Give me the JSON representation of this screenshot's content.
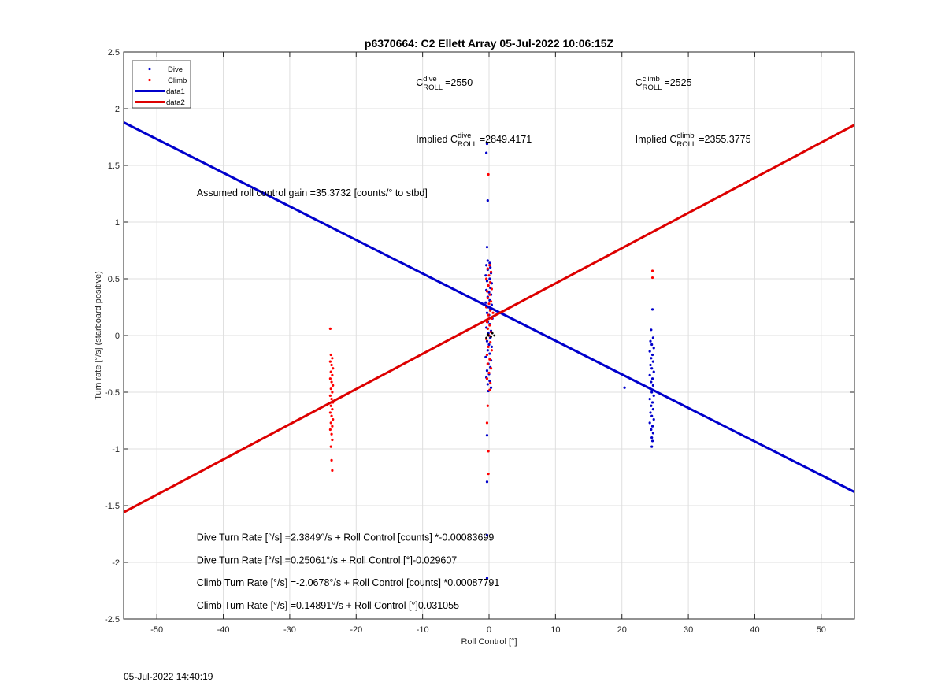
{
  "chart_data": {
    "type": "scatter",
    "title": "p6370664: C2 Ellett Array 05-Jul-2022 10:06:15Z",
    "xlabel": "Roll Control [°]",
    "ylabel": "Turn rate [°/s] (starboard positive)",
    "xlim": [
      -55,
      55
    ],
    "ylim": [
      -2.5,
      2.5
    ],
    "xticks": [
      -50,
      -40,
      -30,
      -20,
      -10,
      0,
      10,
      20,
      30,
      40,
      50
    ],
    "yticks": [
      -2.5,
      -2,
      -1.5,
      -1,
      -0.5,
      0,
      0.5,
      1,
      1.5,
      2,
      2.5
    ],
    "xtick_labels": [
      "-50",
      "-40",
      "-30",
      "-20",
      "-10",
      "0",
      "10",
      "20",
      "30",
      "40",
      "50"
    ],
    "ytick_labels": [
      "-2.5",
      "-2",
      "-1.5",
      "-1",
      "-0.5",
      "0",
      "0.5",
      "1",
      "1.5",
      "2",
      "2.5"
    ],
    "grid": true,
    "legend_position": "top-left",
    "series": [
      {
        "name": "Dive",
        "kind": "scatter",
        "color": "#0000cc",
        "points": [
          [
            -0.3,
            1.69
          ],
          [
            -0.4,
            1.61
          ],
          [
            -0.2,
            1.19
          ],
          [
            -0.3,
            0.78
          ],
          [
            -0.2,
            0.66
          ],
          [
            0.1,
            0.64
          ],
          [
            -0.4,
            0.62
          ],
          [
            0.2,
            0.6
          ],
          [
            -0.2,
            0.58
          ],
          [
            0.3,
            0.55
          ],
          [
            -0.5,
            0.53
          ],
          [
            0.1,
            0.5
          ],
          [
            -0.3,
            0.48
          ],
          [
            0.4,
            0.46
          ],
          [
            -0.1,
            0.44
          ],
          [
            0.2,
            0.42
          ],
          [
            -0.4,
            0.4
          ],
          [
            0.0,
            0.38
          ],
          [
            0.3,
            0.36
          ],
          [
            -0.2,
            0.34
          ],
          [
            0.1,
            0.31
          ],
          [
            -0.5,
            0.29
          ],
          [
            0.4,
            0.27
          ],
          [
            -0.1,
            0.25
          ],
          [
            0.2,
            0.23
          ],
          [
            -0.3,
            0.2
          ],
          [
            0.0,
            0.18
          ],
          [
            0.5,
            0.15
          ],
          [
            -0.2,
            0.12
          ],
          [
            0.1,
            0.1
          ],
          [
            -0.4,
            0.07
          ],
          [
            0.3,
            0.04
          ],
          [
            -0.1,
            0.02
          ],
          [
            0.2,
            -0.02
          ],
          [
            -0.3,
            -0.05
          ],
          [
            0.0,
            -0.08
          ],
          [
            0.4,
            -0.1
          ],
          [
            -0.2,
            -0.13
          ],
          [
            0.1,
            -0.16
          ],
          [
            -0.5,
            -0.19
          ],
          [
            0.3,
            -0.22
          ],
          [
            -0.1,
            -0.25
          ],
          [
            0.2,
            -0.28
          ],
          [
            -0.3,
            -0.31
          ],
          [
            0.0,
            -0.34
          ],
          [
            -0.4,
            -0.37
          ],
          [
            0.1,
            -0.4
          ],
          [
            -0.2,
            -0.43
          ],
          [
            0.3,
            -0.46
          ],
          [
            -0.1,
            -0.49
          ],
          [
            -0.3,
            -0.88
          ],
          [
            -0.3,
            -1.29
          ],
          [
            -0.3,
            -1.76
          ],
          [
            -0.3,
            -2.14
          ],
          [
            20.4,
            -0.46
          ],
          [
            24.6,
            0.23
          ],
          [
            24.4,
            0.05
          ],
          [
            24.7,
            -0.02
          ],
          [
            24.3,
            -0.05
          ],
          [
            24.5,
            -0.08
          ],
          [
            24.8,
            -0.11
          ],
          [
            24.2,
            -0.14
          ],
          [
            24.6,
            -0.17
          ],
          [
            24.4,
            -0.2
          ],
          [
            24.7,
            -0.23
          ],
          [
            24.3,
            -0.26
          ],
          [
            24.5,
            -0.29
          ],
          [
            24.8,
            -0.32
          ],
          [
            24.2,
            -0.35
          ],
          [
            24.6,
            -0.38
          ],
          [
            24.4,
            -0.41
          ],
          [
            24.7,
            -0.44
          ],
          [
            24.3,
            -0.47
          ],
          [
            24.5,
            -0.5
          ],
          [
            24.8,
            -0.53
          ],
          [
            24.2,
            -0.56
          ],
          [
            24.6,
            -0.59
          ],
          [
            24.4,
            -0.62
          ],
          [
            24.7,
            -0.65
          ],
          [
            24.3,
            -0.68
          ],
          [
            24.5,
            -0.71
          ],
          [
            24.8,
            -0.74
          ],
          [
            24.2,
            -0.77
          ],
          [
            24.6,
            -0.8
          ],
          [
            24.4,
            -0.83
          ],
          [
            24.7,
            -0.86
          ],
          [
            24.5,
            -0.9
          ],
          [
            24.6,
            -0.93
          ],
          [
            24.5,
            -0.98
          ]
        ]
      },
      {
        "name": "Climb",
        "kind": "scatter",
        "color": "#ff0000",
        "points": [
          [
            -0.1,
            1.42
          ],
          [
            0.1,
            0.62
          ],
          [
            -0.2,
            0.59
          ],
          [
            0.3,
            0.56
          ],
          [
            0.0,
            0.53
          ],
          [
            -0.4,
            0.5
          ],
          [
            0.2,
            0.47
          ],
          [
            -0.1,
            0.44
          ],
          [
            0.4,
            0.41
          ],
          [
            -0.3,
            0.39
          ],
          [
            0.1,
            0.36
          ],
          [
            -0.2,
            0.33
          ],
          [
            0.3,
            0.3
          ],
          [
            0.0,
            0.28
          ],
          [
            -0.4,
            0.25
          ],
          [
            0.2,
            0.22
          ],
          [
            0.6,
            0.2
          ],
          [
            -0.1,
            0.18
          ],
          [
            0.4,
            0.15
          ],
          [
            -0.3,
            0.12
          ],
          [
            0.1,
            0.09
          ],
          [
            -0.2,
            0.06
          ],
          [
            0.3,
            0.03
          ],
          [
            0.0,
            0.0
          ],
          [
            -0.4,
            -0.03
          ],
          [
            0.2,
            -0.06
          ],
          [
            -0.1,
            -0.1
          ],
          [
            0.4,
            -0.13
          ],
          [
            -0.3,
            -0.17
          ],
          [
            0.1,
            -0.21
          ],
          [
            -0.2,
            -0.25
          ],
          [
            0.3,
            -0.29
          ],
          [
            0.0,
            -0.33
          ],
          [
            -0.3,
            -0.38
          ],
          [
            0.2,
            -0.42
          ],
          [
            0.1,
            -0.48
          ],
          [
            -0.2,
            -0.62
          ],
          [
            -0.3,
            -0.77
          ],
          [
            -0.1,
            -1.02
          ],
          [
            -0.1,
            -1.22
          ],
          [
            24.6,
            0.57
          ],
          [
            24.6,
            0.51
          ],
          [
            -23.9,
            0.06
          ],
          [
            -23.8,
            -0.17
          ],
          [
            -23.6,
            -0.2
          ],
          [
            -23.9,
            -0.23
          ],
          [
            -23.7,
            -0.26
          ],
          [
            -23.5,
            -0.29
          ],
          [
            -23.8,
            -0.32
          ],
          [
            -23.6,
            -0.35
          ],
          [
            -23.9,
            -0.38
          ],
          [
            -23.7,
            -0.41
          ],
          [
            -23.5,
            -0.44
          ],
          [
            -23.8,
            -0.47
          ],
          [
            -23.6,
            -0.5
          ],
          [
            -23.9,
            -0.53
          ],
          [
            -23.7,
            -0.56
          ],
          [
            -23.5,
            -0.59
          ],
          [
            -23.8,
            -0.62
          ],
          [
            -23.6,
            -0.65
          ],
          [
            -23.9,
            -0.68
          ],
          [
            -23.7,
            -0.71
          ],
          [
            -23.5,
            -0.74
          ],
          [
            -23.8,
            -0.77
          ],
          [
            -23.6,
            -0.8
          ],
          [
            -23.9,
            -0.83
          ],
          [
            -23.7,
            -0.87
          ],
          [
            -23.6,
            -0.92
          ],
          [
            -23.8,
            -0.98
          ],
          [
            -23.7,
            -1.1
          ],
          [
            -23.6,
            -1.19
          ]
        ]
      },
      {
        "name": "data1",
        "kind": "line",
        "color": "#0000cc",
        "points": [
          [
            -55,
            1.879
          ],
          [
            55,
            -1.379
          ]
        ]
      },
      {
        "name": "data2",
        "kind": "line",
        "color": "#dd0000",
        "points": [
          [
            -55,
            -1.559
          ],
          [
            55,
            1.857
          ]
        ]
      }
    ],
    "extra_points": {
      "color": "#000000",
      "points": [
        [
          -0.2,
          0.01
        ],
        [
          0.3,
          -0.01
        ],
        [
          -0.4,
          -0.02
        ],
        [
          0.5,
          0.02
        ],
        [
          0.8,
          0.0
        ],
        [
          -0.1,
          0.0
        ]
      ]
    },
    "annotations": {
      "c_dive": {
        "base": "C",
        "sup": "dive",
        "sub": "ROLL",
        "suffix": "=2550",
        "x": -11,
        "y": 2.2
      },
      "c_climb": {
        "base": "C",
        "sup": "climb",
        "sub": "ROLL",
        "suffix": "=2525",
        "x": 22,
        "y": 2.2
      },
      "impl_dive": {
        "prefix": "Implied ",
        "base": "C",
        "sup": "dive",
        "sub": "ROLL",
        "suffix": "=2849.4171",
        "x": -11,
        "y": 1.7
      },
      "impl_climb": {
        "prefix": "Implied ",
        "base": "C",
        "sup": "climb",
        "sub": "ROLL",
        "suffix": "=2355.3775",
        "x": 22,
        "y": 1.7
      },
      "gain": {
        "text": "Assumed roll control gain =35.3732 [counts/° to stbd]",
        "x": -44,
        "y": 1.23
      },
      "equations": [
        {
          "text": "Dive Turn Rate [°/s] =2.3849°/s + Roll Control [counts] *-0.00083699",
          "x": -44,
          "y": -1.81
        },
        {
          "text": "Dive Turn Rate [°/s] =0.25061°/s + Roll Control [°]-0.029607",
          "x": -44,
          "y": -2.01
        },
        {
          "text": "Climb Turn Rate [°/s] =-2.0678°/s + Roll Control [counts] *0.00087791",
          "x": -44,
          "y": -2.21
        },
        {
          "text": "Climb Turn Rate [°/s] =0.14891°/s + Roll Control [°]0.031055",
          "x": -44,
          "y": -2.41
        }
      ]
    }
  },
  "footer": {
    "timestamp": "05-Jul-2022 14:40:19"
  }
}
